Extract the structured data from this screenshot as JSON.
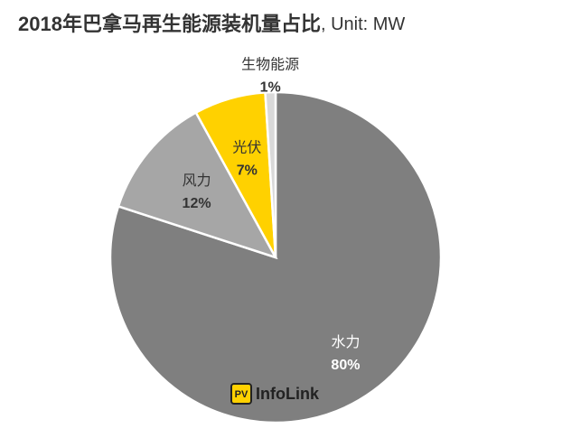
{
  "chart_data": {
    "type": "pie",
    "title": "2018年巴拿马再生能源装机量占比",
    "subtitle": ", Unit: MW",
    "categories": [
      "水力",
      "风力",
      "光伏",
      "生物能源"
    ],
    "values": [
      80,
      12,
      7,
      1
    ],
    "value_labels": [
      "80%",
      "12%",
      "7%",
      "1%"
    ],
    "colors": [
      "#7f7f7f",
      "#a6a6a6",
      "#ffd100",
      "#d9d9d9"
    ],
    "logo": {
      "badge": "PV",
      "text": "InfoLink"
    }
  }
}
